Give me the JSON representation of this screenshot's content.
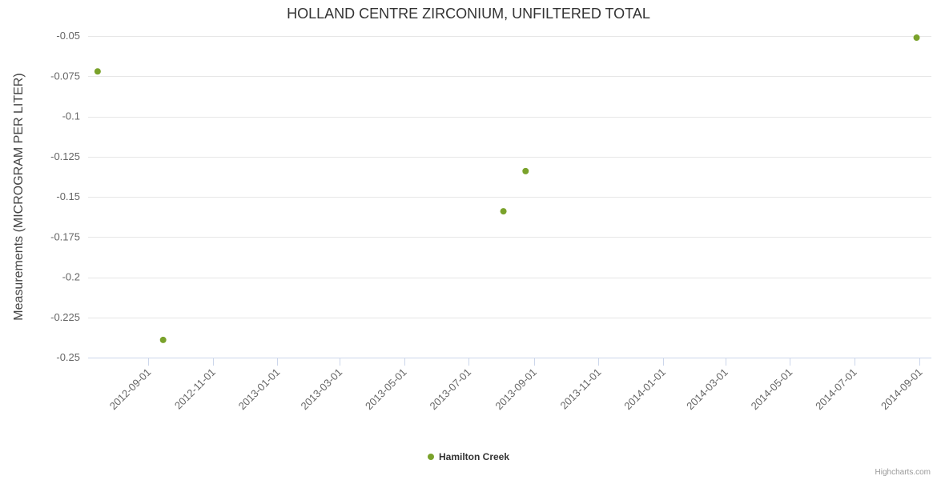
{
  "credits": "Highcharts.com",
  "chart_data": {
    "type": "scatter",
    "title": "HOLLAND CENTRE ZIRCONIUM, UNFILTERED TOTAL",
    "xlabel": "",
    "ylabel": "Measurements (MICROGRAM PER LITER)",
    "grid": true,
    "legend_position": "bottom",
    "x_range": [
      "2012-07-06",
      "2014-09-12"
    ],
    "y_range": [
      -0.25,
      -0.045
    ],
    "x_ticks": [
      "2012-09-01",
      "2012-11-01",
      "2013-01-01",
      "2013-03-01",
      "2013-05-01",
      "2013-07-01",
      "2013-09-01",
      "2013-11-01",
      "2014-01-01",
      "2014-03-01",
      "2014-05-01",
      "2014-07-01",
      "2014-09-01"
    ],
    "y_ticks": [
      -0.05,
      -0.075,
      -0.1,
      -0.125,
      -0.15,
      -0.175,
      -0.2,
      -0.225,
      -0.25
    ],
    "y_tick_labels": [
      "-0.05",
      "-0.075",
      "-0.1",
      "-0.125",
      "-0.15",
      "-0.175",
      "-0.2",
      "-0.225",
      "-0.25"
    ],
    "series": [
      {
        "name": "Hamilton Creek",
        "color": "#7aa22b",
        "points": [
          {
            "x": "2012-07-15",
            "y": -0.072
          },
          {
            "x": "2012-09-15",
            "y": -0.239
          },
          {
            "x": "2013-08-03",
            "y": -0.159
          },
          {
            "x": "2013-08-24",
            "y": -0.134
          },
          {
            "x": "2014-08-29",
            "y": -0.051
          }
        ]
      }
    ],
    "colors": {
      "grid": "#e6e6e6",
      "axis_line": "#ccd6eb",
      "tick_label": "#666666",
      "title": "#333333",
      "axis_title": "#444444",
      "legend_text": "#333333",
      "credits": "#999999"
    }
  }
}
